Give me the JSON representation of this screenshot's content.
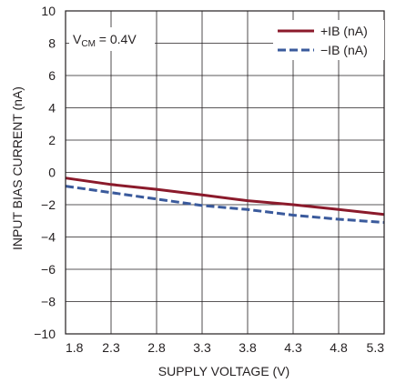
{
  "chart_data": {
    "type": "line",
    "xlabel": "SUPPLY VOLTAGE (V)",
    "ylabel": "INPUT BIAS CURRENT (nA)",
    "xlim": [
      1.8,
      5.3
    ],
    "ylim": [
      -10,
      10
    ],
    "x_ticks": [
      "1.8",
      "2.3",
      "2.8",
      "3.3",
      "3.8",
      "4.3",
      "4.8",
      "5.3"
    ],
    "y_ticks": [
      "10",
      "8",
      "6",
      "4",
      "2",
      "0",
      "−2",
      "−4",
      "−6",
      "−8",
      "−10"
    ],
    "grid": true,
    "legend_position": "top-right",
    "annotation": {
      "main": "V",
      "sub": "CM",
      "rest": " = 0.4V"
    },
    "series": [
      {
        "name": "+IB (nA)",
        "color": "#8b1a2b",
        "style": "solid",
        "x": [
          1.8,
          2.3,
          2.8,
          3.3,
          3.8,
          4.3,
          4.8,
          5.3
        ],
        "y": [
          -0.35,
          -0.75,
          -1.05,
          -1.4,
          -1.75,
          -2.0,
          -2.3,
          -2.6
        ]
      },
      {
        "name": "−IB (nA)",
        "color": "#3a5a9c",
        "style": "dashed",
        "x": [
          1.8,
          2.3,
          2.8,
          3.3,
          3.8,
          4.3,
          4.8,
          5.3
        ],
        "y": [
          -0.85,
          -1.25,
          -1.65,
          -2.05,
          -2.3,
          -2.65,
          -2.9,
          -3.1
        ]
      }
    ]
  }
}
